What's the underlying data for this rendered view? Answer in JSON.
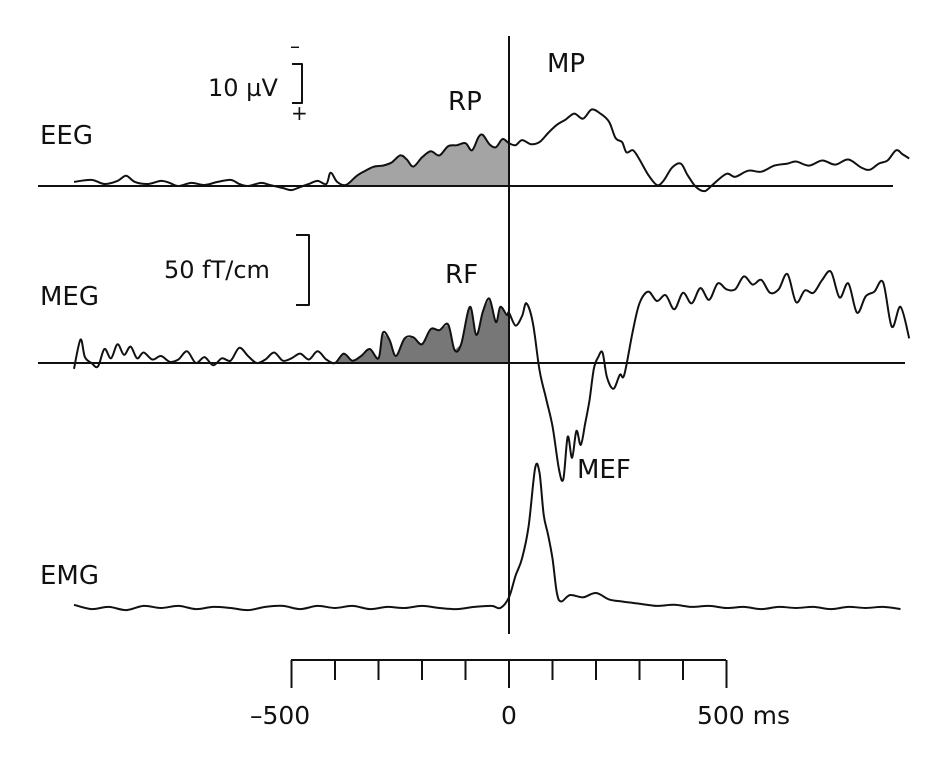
{
  "chart_data": {
    "type": "line",
    "x_unit": "ms",
    "xlim": [
      -1000,
      920
    ],
    "x_ticks": [
      -500,
      -400,
      -300,
      -200,
      -100,
      0,
      100,
      200,
      300,
      400,
      500
    ],
    "x_tick_labels": [
      {
        "value": -500,
        "text": "–500"
      },
      {
        "value": 0,
        "text": "0"
      },
      {
        "value": 500,
        "text": "500 ms"
      }
    ],
    "event_marker_ms": 0,
    "series": [
      {
        "name": "EEG",
        "unit": "µV",
        "polarity": "negative up",
        "scale_bar": {
          "value": 10,
          "label": "10 µV",
          "minus": "–",
          "plus": "+"
        },
        "shaded": {
          "label": "RP",
          "from_ms": -375,
          "to_ms": 0
        },
        "annotations": [
          {
            "label": "MP",
            "ms": 150
          }
        ],
        "points": [
          [
            -1080,
            0.1
          ],
          [
            -1040,
            0.0
          ],
          [
            -1000,
            0.4
          ],
          [
            -960,
            0.6
          ],
          [
            -930,
            0.2
          ],
          [
            -900,
            0.5
          ],
          [
            -880,
            1.0
          ],
          [
            -860,
            0.4
          ],
          [
            -830,
            0.2
          ],
          [
            -800,
            0.5
          ],
          [
            -780,
            0.3
          ],
          [
            -760,
            0.0
          ],
          [
            -730,
            0.3
          ],
          [
            -700,
            0.1
          ],
          [
            -670,
            0.4
          ],
          [
            -640,
            0.6
          ],
          [
            -620,
            0.2
          ],
          [
            -600,
            0.0
          ],
          [
            -570,
            0.3
          ],
          [
            -550,
            0.1
          ],
          [
            -520,
            -0.2
          ],
          [
            -500,
            -0.4
          ],
          [
            -480,
            -0.1
          ],
          [
            -460,
            0.2
          ],
          [
            -440,
            0.5
          ],
          [
            -420,
            0.2
          ],
          [
            -410,
            1.3
          ],
          [
            -395,
            0.4
          ],
          [
            -375,
            0.1
          ],
          [
            -350,
            1.0
          ],
          [
            -330,
            1.5
          ],
          [
            -310,
            1.9
          ],
          [
            -290,
            2.0
          ],
          [
            -270,
            2.3
          ],
          [
            -250,
            3.0
          ],
          [
            -235,
            2.6
          ],
          [
            -220,
            1.9
          ],
          [
            -200,
            2.8
          ],
          [
            -180,
            3.4
          ],
          [
            -160,
            3.0
          ],
          [
            -140,
            3.9
          ],
          [
            -120,
            4.0
          ],
          [
            -100,
            4.2
          ],
          [
            -85,
            3.5
          ],
          [
            -70,
            4.8
          ],
          [
            -60,
            5.0
          ],
          [
            -45,
            4.1
          ],
          [
            -30,
            3.8
          ],
          [
            -15,
            4.6
          ],
          [
            0,
            4.2
          ],
          [
            15,
            4.0
          ],
          [
            30,
            4.5
          ],
          [
            50,
            4.1
          ],
          [
            70,
            4.3
          ],
          [
            90,
            5.2
          ],
          [
            110,
            6.0
          ],
          [
            130,
            6.5
          ],
          [
            150,
            7.1
          ],
          [
            170,
            6.6
          ],
          [
            190,
            7.5
          ],
          [
            210,
            7.1
          ],
          [
            230,
            6.3
          ],
          [
            245,
            4.7
          ],
          [
            260,
            4.3
          ],
          [
            270,
            3.3
          ],
          [
            285,
            3.5
          ],
          [
            300,
            2.6
          ],
          [
            320,
            1.1
          ],
          [
            340,
            0.1
          ],
          [
            355,
            0.5
          ],
          [
            375,
            1.8
          ],
          [
            395,
            2.2
          ],
          [
            410,
            1.1
          ],
          [
            430,
            -0.1
          ],
          [
            450,
            -0.5
          ],
          [
            470,
            0.2
          ],
          [
            500,
            1.2
          ],
          [
            520,
            0.9
          ],
          [
            550,
            1.5
          ],
          [
            580,
            1.4
          ],
          [
            610,
            2.0
          ],
          [
            640,
            2.2
          ],
          [
            660,
            2.4
          ],
          [
            690,
            2.0
          ],
          [
            720,
            2.5
          ],
          [
            750,
            2.1
          ],
          [
            780,
            2.6
          ],
          [
            810,
            1.8
          ],
          [
            830,
            1.6
          ],
          [
            850,
            2.2
          ],
          [
            870,
            2.5
          ],
          [
            890,
            3.5
          ],
          [
            905,
            3.1
          ],
          [
            920,
            2.7
          ],
          [
            935,
            3.0
          ]
        ]
      },
      {
        "name": "MEG",
        "unit": "fT/cm",
        "scale_bar": {
          "value": 50,
          "label": "50 fT/cm"
        },
        "shaded": {
          "label": "RF",
          "from_ms": -400,
          "to_ms": 0
        },
        "annotations": [
          {
            "label": "MEF",
            "ms": 125
          }
        ],
        "points": [
          [
            -1080,
            0.2
          ],
          [
            -1065,
            -0.5
          ],
          [
            -1050,
            0.3
          ],
          [
            -1035,
            -0.7
          ],
          [
            -1020,
            0.2
          ],
          [
            -1000,
            -0.5
          ],
          [
            -985,
            2.0
          ],
          [
            -975,
            0.5
          ],
          [
            -960,
            0.0
          ],
          [
            -945,
            -0.3
          ],
          [
            -930,
            1.2
          ],
          [
            -915,
            0.4
          ],
          [
            -900,
            1.6
          ],
          [
            -885,
            0.7
          ],
          [
            -870,
            1.4
          ],
          [
            -855,
            0.4
          ],
          [
            -840,
            0.9
          ],
          [
            -820,
            0.3
          ],
          [
            -800,
            0.6
          ],
          [
            -780,
            0.1
          ],
          [
            -760,
            0.3
          ],
          [
            -740,
            1.0
          ],
          [
            -720,
            0.0
          ],
          [
            -700,
            0.5
          ],
          [
            -680,
            -0.2
          ],
          [
            -660,
            0.4
          ],
          [
            -640,
            0.2
          ],
          [
            -620,
            1.3
          ],
          [
            -600,
            0.6
          ],
          [
            -580,
            0.0
          ],
          [
            -560,
            0.3
          ],
          [
            -540,
            0.9
          ],
          [
            -520,
            0.2
          ],
          [
            -500,
            0.4
          ],
          [
            -480,
            0.8
          ],
          [
            -460,
            0.3
          ],
          [
            -440,
            1.0
          ],
          [
            -420,
            0.3
          ],
          [
            -400,
            0.0
          ],
          [
            -380,
            0.8
          ],
          [
            -360,
            0.2
          ],
          [
            -340,
            0.6
          ],
          [
            -320,
            1.2
          ],
          [
            -300,
            0.4
          ],
          [
            -290,
            2.6
          ],
          [
            -275,
            2.0
          ],
          [
            -260,
            0.6
          ],
          [
            -240,
            2.1
          ],
          [
            -220,
            2.2
          ],
          [
            -200,
            1.6
          ],
          [
            -180,
            2.9
          ],
          [
            -160,
            2.8
          ],
          [
            -140,
            3.3
          ],
          [
            -125,
            1.1
          ],
          [
            -110,
            1.6
          ],
          [
            -90,
            4.8
          ],
          [
            -75,
            2.4
          ],
          [
            -60,
            4.4
          ],
          [
            -45,
            5.5
          ],
          [
            -30,
            3.5
          ],
          [
            -20,
            4.8
          ],
          [
            -5,
            4.1
          ],
          [
            0,
            4.3
          ],
          [
            15,
            3.2
          ],
          [
            30,
            4.0
          ],
          [
            40,
            5.1
          ],
          [
            55,
            3.4
          ],
          [
            70,
            -0.6
          ],
          [
            85,
            -3.0
          ],
          [
            100,
            -5.4
          ],
          [
            115,
            -9.1
          ],
          [
            125,
            -9.9
          ],
          [
            135,
            -6.3
          ],
          [
            145,
            -8.1
          ],
          [
            155,
            -5.8
          ],
          [
            165,
            -7.0
          ],
          [
            175,
            -5.2
          ],
          [
            185,
            -3.2
          ],
          [
            195,
            -0.5
          ],
          [
            205,
            0.5
          ],
          [
            215,
            0.9
          ],
          [
            225,
            -1.2
          ],
          [
            240,
            -2.2
          ],
          [
            255,
            -1.0
          ],
          [
            265,
            -1.0
          ],
          [
            285,
            2.8
          ],
          [
            300,
            5.1
          ],
          [
            320,
            6.1
          ],
          [
            340,
            5.3
          ],
          [
            360,
            5.8
          ],
          [
            380,
            4.6
          ],
          [
            400,
            6.0
          ],
          [
            420,
            5.1
          ],
          [
            440,
            6.4
          ],
          [
            460,
            5.4
          ],
          [
            480,
            6.8
          ],
          [
            500,
            6.3
          ],
          [
            520,
            6.3
          ],
          [
            540,
            7.4
          ],
          [
            560,
            6.7
          ],
          [
            580,
            7.1
          ],
          [
            600,
            6.0
          ],
          [
            620,
            6.3
          ],
          [
            640,
            7.6
          ],
          [
            660,
            5.2
          ],
          [
            680,
            6.2
          ],
          [
            700,
            6.0
          ],
          [
            720,
            7.1
          ],
          [
            740,
            7.8
          ],
          [
            760,
            5.6
          ],
          [
            780,
            6.8
          ],
          [
            800,
            4.3
          ],
          [
            820,
            5.7
          ],
          [
            840,
            6.1
          ],
          [
            860,
            6.9
          ],
          [
            880,
            3.1
          ],
          [
            900,
            4.8
          ],
          [
            920,
            2.1
          ],
          [
            935,
            4.5
          ]
        ]
      },
      {
        "name": "EMG",
        "annotations": [],
        "points": [
          [
            -1080,
            0.1
          ],
          [
            -1040,
            0.0
          ],
          [
            -1000,
            0.15
          ],
          [
            -960,
            -0.05
          ],
          [
            -920,
            0.05
          ],
          [
            -880,
            -0.1
          ],
          [
            -840,
            0.1
          ],
          [
            -800,
            0.0
          ],
          [
            -760,
            0.1
          ],
          [
            -720,
            -0.05
          ],
          [
            -680,
            0.05
          ],
          [
            -640,
            0.0
          ],
          [
            -600,
            -0.1
          ],
          [
            -560,
            0.05
          ],
          [
            -520,
            0.1
          ],
          [
            -480,
            -0.05
          ],
          [
            -440,
            0.1
          ],
          [
            -400,
            0.0
          ],
          [
            -360,
            0.1
          ],
          [
            -320,
            -0.05
          ],
          [
            -280,
            0.05
          ],
          [
            -240,
            0.0
          ],
          [
            -200,
            0.1
          ],
          [
            -160,
            0.0
          ],
          [
            -120,
            -0.05
          ],
          [
            -80,
            0.05
          ],
          [
            -40,
            0.1
          ],
          [
            -20,
            0.0
          ],
          [
            0,
            0.5
          ],
          [
            15,
            1.5
          ],
          [
            30,
            2.3
          ],
          [
            45,
            3.8
          ],
          [
            60,
            6.5
          ],
          [
            70,
            6.3
          ],
          [
            80,
            4.3
          ],
          [
            90,
            3.4
          ],
          [
            100,
            2.3
          ],
          [
            110,
            0.7
          ],
          [
            120,
            0.3
          ],
          [
            140,
            0.6
          ],
          [
            170,
            0.5
          ],
          [
            200,
            0.7
          ],
          [
            230,
            0.4
          ],
          [
            260,
            0.3
          ],
          [
            300,
            0.2
          ],
          [
            340,
            0.1
          ],
          [
            380,
            0.15
          ],
          [
            420,
            0.05
          ],
          [
            460,
            0.1
          ],
          [
            500,
            0.0
          ],
          [
            540,
            0.05
          ],
          [
            580,
            -0.05
          ],
          [
            620,
            0.05
          ],
          [
            660,
            0.0
          ],
          [
            700,
            0.05
          ],
          [
            740,
            -0.05
          ],
          [
            780,
            0.05
          ],
          [
            820,
            0.0
          ],
          [
            860,
            0.05
          ],
          [
            900,
            -0.05
          ],
          [
            935,
            0.1
          ]
        ]
      }
    ]
  }
}
